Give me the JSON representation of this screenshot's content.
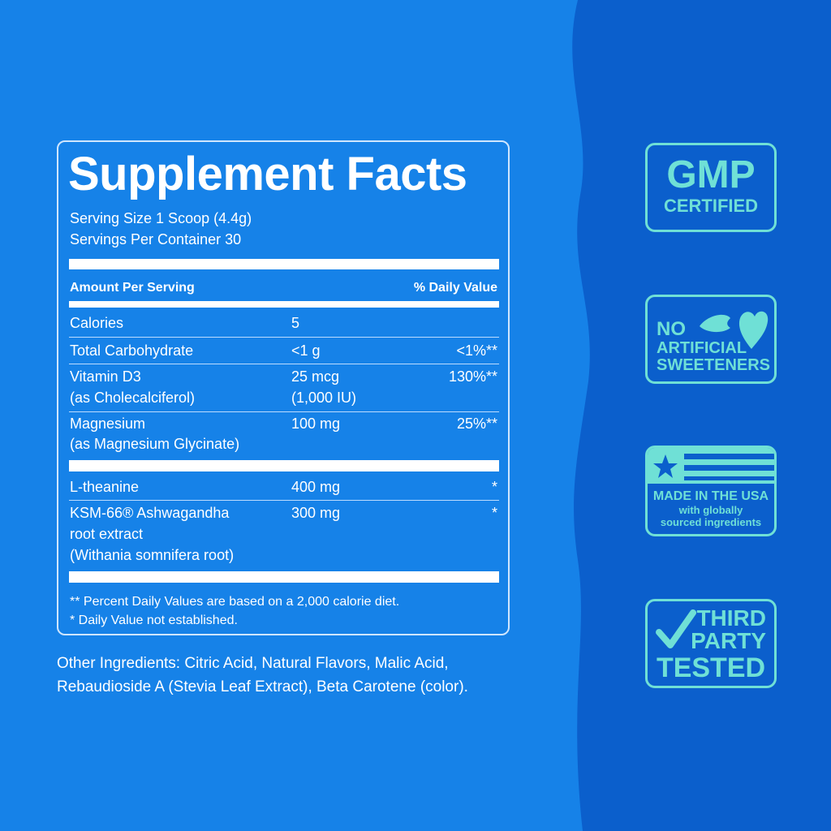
{
  "colors": {
    "background_left": "#1682e8",
    "background_right": "#0b5fcc",
    "badge": "#6fe0d6"
  },
  "facts": {
    "title": "Supplement Facts",
    "serving_size": "Serving Size 1 Scoop (4.4g)",
    "servings_per_container": "Servings Per Container 30",
    "header_amount": "Amount Per Serving",
    "header_dv": "% Daily Value",
    "rows": [
      {
        "name": "Calories",
        "amount": "5",
        "dv": ""
      },
      {
        "name": "Total Carbohydrate",
        "amount": "<1 g",
        "dv": "<1%**"
      },
      {
        "name": "Vitamin D3",
        "name2": "(as Cholecalciferol)",
        "amount": "25 mcg",
        "amount2": "(1,000 IU)",
        "dv": "130%**"
      },
      {
        "name": "Magnesium",
        "name2": "(as Magnesium Glycinate)",
        "amount": "100 mg",
        "dv": "25%**"
      },
      {
        "name": "L-theanine",
        "amount": "400 mg",
        "dv": "*"
      },
      {
        "name": "KSM-66® Ashwagandha",
        "name2": "root extract",
        "name3": "(Withania somnifera root)",
        "amount": "300 mg",
        "dv": "*"
      }
    ],
    "footnote1": "** Percent Daily Values are based on a 2,000 calorie diet.",
    "footnote2": "* Daily Value not established."
  },
  "other_ingredients": {
    "line1": "Other Ingredients: Citric Acid, Natural Flavors, Malic Acid,",
    "line2": "Rebaudioside A (Stevia Leaf Extract), Beta Carotene (color)."
  },
  "badges": {
    "gmp": {
      "line1": "GMP",
      "line2": "CERTIFIED"
    },
    "sweeteners": {
      "line1": "NO",
      "line2": "ARTIFICIAL",
      "line3": "SWEETENERS",
      "icon": "leaf-icon"
    },
    "usa": {
      "line1": "MADE IN THE USA",
      "line2": "with globally",
      "line3": "sourced ingredients",
      "icon": "flag-icon"
    },
    "tested": {
      "line1": "THIRD",
      "line2": "PARTY",
      "line3": "TESTED",
      "icon": "checkmark-icon"
    }
  }
}
